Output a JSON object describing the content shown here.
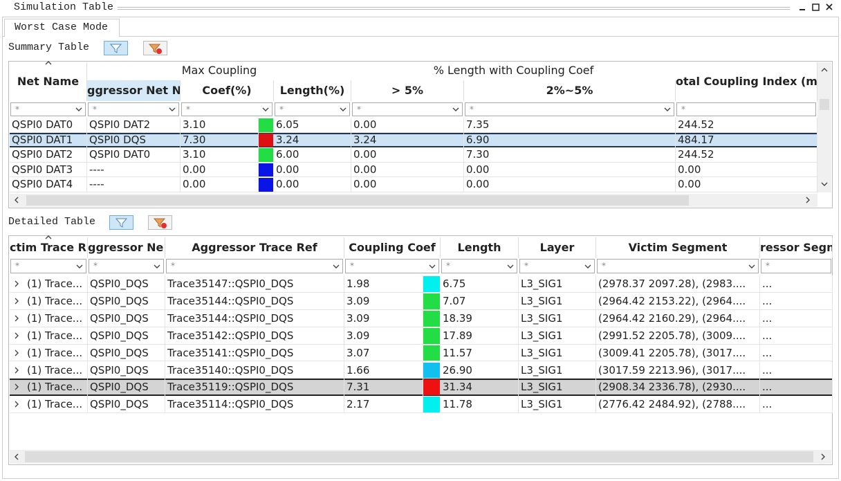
{
  "panel": {
    "title": "Simulation Table",
    "tab": "Worst Case Mode"
  },
  "summary": {
    "label": "Summary Table",
    "group_headers": [
      "Max Coupling",
      "% Length with Coupling Coef"
    ],
    "columns": [
      "Net Name",
      "ggressor Net Na",
      "Coef(%)",
      "Length(%)",
      "> 5%",
      "2%~5%",
      "otal Coupling Index (mi"
    ],
    "filter": "*",
    "selected_row": 1,
    "rows": [
      {
        "cells": [
          "QSPI0 DAT0",
          "QSPI0 DAT2",
          "3.10",
          "6.05",
          "0.00",
          "7.35",
          "244.52"
        ],
        "swatch": "#22dd44"
      },
      {
        "cells": [
          "QSPI0 DAT1",
          "QSPI0 DQS",
          "7.30",
          "3.24",
          "3.24",
          "6.90",
          "484.17"
        ],
        "swatch": "#dd1111"
      },
      {
        "cells": [
          "QSPI0 DAT2",
          "QSPI0 DAT0",
          "3.10",
          "6.00",
          "0.00",
          "7.30",
          "244.52"
        ],
        "swatch": "#22dd44"
      },
      {
        "cells": [
          "QSPI0 DAT3",
          "----",
          "0.00",
          "0.00",
          "0.00",
          "0.00",
          "0.00"
        ],
        "swatch": "#0a14e6"
      },
      {
        "cells": [
          "QSPI0 DAT4",
          "----",
          "0.00",
          "0.00",
          "0.00",
          "0.00",
          "0.00"
        ],
        "swatch": "#0a14e6"
      }
    ]
  },
  "detailed": {
    "label": "Detailed Table",
    "columns": [
      "ctim Trace R",
      "ggressor Ne",
      "Aggressor Trace Ref",
      "Coupling Coef",
      "Length",
      "Layer",
      "Victim Segment",
      "ressor Segn"
    ],
    "filter": "*",
    "selected_row": 6,
    "rows": [
      {
        "cells": [
          "(1) Trace...",
          "QSPI0_DQS",
          "Trace35147::QSPI0_DQS",
          "1.98",
          "6.75",
          "L3_SIG1",
          "(2978.37 2097.28), (2983....",
          "..."
        ],
        "swatch": "#00f0f0"
      },
      {
        "cells": [
          "(1) Trace...",
          "QSPI0_DQS",
          "Trace35144::QSPI0_DQS",
          "3.09",
          "7.07",
          "L3_SIG1",
          "(2964.42 2153.22), (2964....",
          "..."
        ],
        "swatch": "#22dd44"
      },
      {
        "cells": [
          "(1) Trace...",
          "QSPI0_DQS",
          "Trace35144::QSPI0_DQS",
          "3.09",
          "18.39",
          "L3_SIG1",
          "(2964.42 2160.29), (2964....",
          "..."
        ],
        "swatch": "#22dd44"
      },
      {
        "cells": [
          "(1) Trace...",
          "QSPI0_DQS",
          "Trace35142::QSPI0_DQS",
          "3.09",
          "17.89",
          "L3_SIG1",
          "(2991.52 2205.78), (3009....",
          "..."
        ],
        "swatch": "#22dd44"
      },
      {
        "cells": [
          "(1) Trace...",
          "QSPI0_DQS",
          "Trace35141::QSPI0_DQS",
          "3.07",
          "11.57",
          "L3_SIG1",
          "(3009.41 2205.78), (3017....",
          "..."
        ],
        "swatch": "#22dd44"
      },
      {
        "cells": [
          "(1) Trace...",
          "QSPI0_DQS",
          "Trace35140::QSPI0_DQS",
          "1.66",
          "26.90",
          "L3_SIG1",
          "(3017.59 2213.96), (3017....",
          "..."
        ],
        "swatch": "#12c0f0"
      },
      {
        "cells": [
          "(1) Trace...",
          "QSPI0_DQS",
          "Trace35119::QSPI0_DQS",
          "7.31",
          "31.34",
          "L3_SIG1",
          "(2908.34 2336.78), (2930....",
          "..."
        ],
        "swatch": "#ee1111"
      },
      {
        "cells": [
          "(1) Trace...",
          "QSPI0_DQS",
          "Trace35114::QSPI0_DQS",
          "2.17",
          "11.78",
          "L3_SIG1",
          "(2776.42 2484.92), (2788....",
          "..."
        ],
        "swatch": "#00f0f0"
      }
    ]
  }
}
